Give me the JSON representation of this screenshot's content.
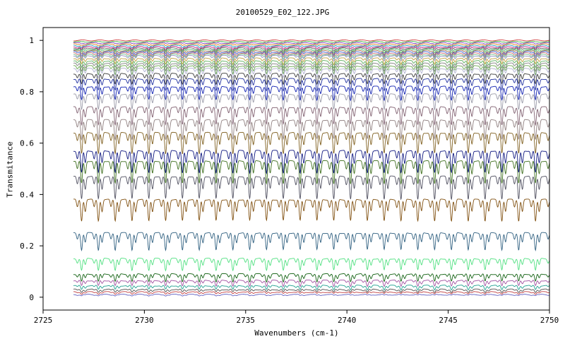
{
  "chart_data": {
    "type": "line",
    "title": "20100529_E02_122.JPG",
    "xlabel": "Wavenumbers (cm-1)",
    "ylabel": "Transmitance",
    "xlim": [
      2725,
      2750
    ],
    "ylim": [
      -0.05,
      1.05
    ],
    "x_ticks": [
      2725,
      2730,
      2735,
      2740,
      2745,
      2750
    ],
    "y_ticks": [
      0,
      0.2,
      0.4,
      0.6,
      0.8,
      1
    ],
    "y_tick_labels": [
      "0",
      "0.2",
      "0.4",
      "0.6",
      "0.8",
      "1"
    ],
    "x_data_range": [
      2726.5,
      2750
    ],
    "absorption_line_spacing_cm1": 0.83,
    "grid": false,
    "legend": "none",
    "series": [
      {
        "baseline": 1.0,
        "color": "#d04040"
      },
      {
        "baseline": 0.995,
        "color": "#40b040"
      },
      {
        "baseline": 0.99,
        "color": "#8040c0"
      },
      {
        "baseline": 0.985,
        "color": "#e08020"
      },
      {
        "baseline": 0.98,
        "color": "#20a0c0"
      },
      {
        "baseline": 0.975,
        "color": "#c02080"
      },
      {
        "baseline": 0.97,
        "color": "#606060"
      },
      {
        "baseline": 0.965,
        "color": "#50c070"
      },
      {
        "baseline": 0.96,
        "color": "#a07050"
      },
      {
        "baseline": 0.955,
        "color": "#4060d0"
      },
      {
        "baseline": 0.95,
        "color": "#d07070"
      },
      {
        "baseline": 0.945,
        "color": "#70c090"
      },
      {
        "baseline": 0.94,
        "color": "#9090c0"
      },
      {
        "baseline": 0.93,
        "color": "#c0a040"
      },
      {
        "baseline": 0.92,
        "color": "#60b060"
      },
      {
        "baseline": 0.91,
        "color": "#808080"
      },
      {
        "baseline": 0.9,
        "color": "#6aa84f"
      },
      {
        "baseline": 0.89,
        "color": "#b0b0d0"
      },
      {
        "baseline": 0.87,
        "color": "#3a3a3a"
      },
      {
        "baseline": 0.85,
        "color": "#2030a0"
      },
      {
        "baseline": 0.82,
        "color": "#1020b0"
      },
      {
        "baseline": 0.79,
        "color": "#9a9aa8"
      },
      {
        "baseline": 0.74,
        "color": "#806070"
      },
      {
        "baseline": 0.69,
        "color": "#908080"
      },
      {
        "baseline": 0.64,
        "color": "#806020"
      },
      {
        "baseline": 0.57,
        "color": "#101880"
      },
      {
        "baseline": 0.53,
        "color": "#407020"
      },
      {
        "baseline": 0.47,
        "color": "#505060"
      },
      {
        "baseline": 0.38,
        "color": "#805010"
      },
      {
        "baseline": 0.25,
        "color": "#306080"
      },
      {
        "baseline": 0.15,
        "color": "#50e080"
      },
      {
        "baseline": 0.09,
        "color": "#106010"
      },
      {
        "baseline": 0.065,
        "color": "#a050a0"
      },
      {
        "baseline": 0.045,
        "color": "#20a090"
      },
      {
        "baseline": 0.03,
        "color": "#505050"
      },
      {
        "baseline": 0.02,
        "color": "#c04040"
      },
      {
        "baseline": 0.01,
        "color": "#6060c0"
      }
    ]
  }
}
